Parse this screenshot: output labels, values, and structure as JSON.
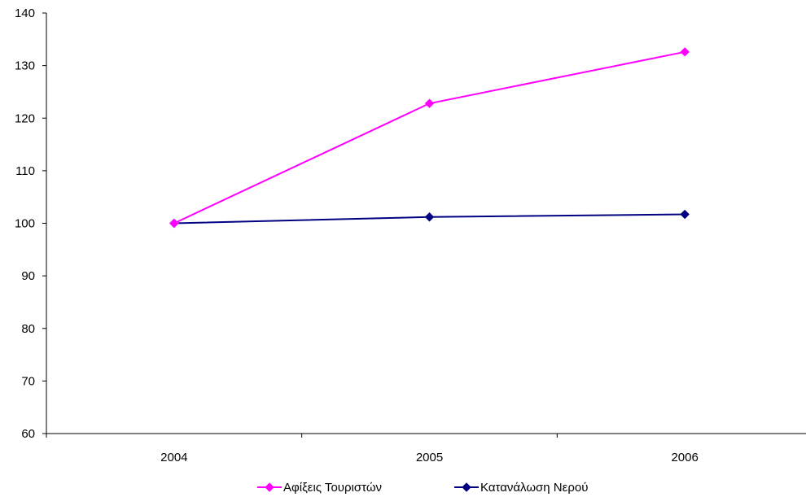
{
  "chart_data": {
    "type": "line",
    "categories": [
      "2004",
      "2005",
      "2006"
    ],
    "series": [
      {
        "name": "Αφίξεις Τουριστών",
        "values": [
          100,
          122.8,
          132.6
        ],
        "color": "#FF00FF",
        "marker": "diamond"
      },
      {
        "name": "Κατανάλωση Νερού",
        "values": [
          100,
          101.2,
          101.7
        ],
        "color": "#000080",
        "marker": "diamond"
      }
    ],
    "ylim": [
      60,
      140
    ],
    "yticks": [
      60,
      70,
      80,
      90,
      100,
      110,
      120,
      130,
      140
    ],
    "grid": false,
    "legend_position": "bottom",
    "title": "",
    "xlabel": "",
    "ylabel": ""
  }
}
